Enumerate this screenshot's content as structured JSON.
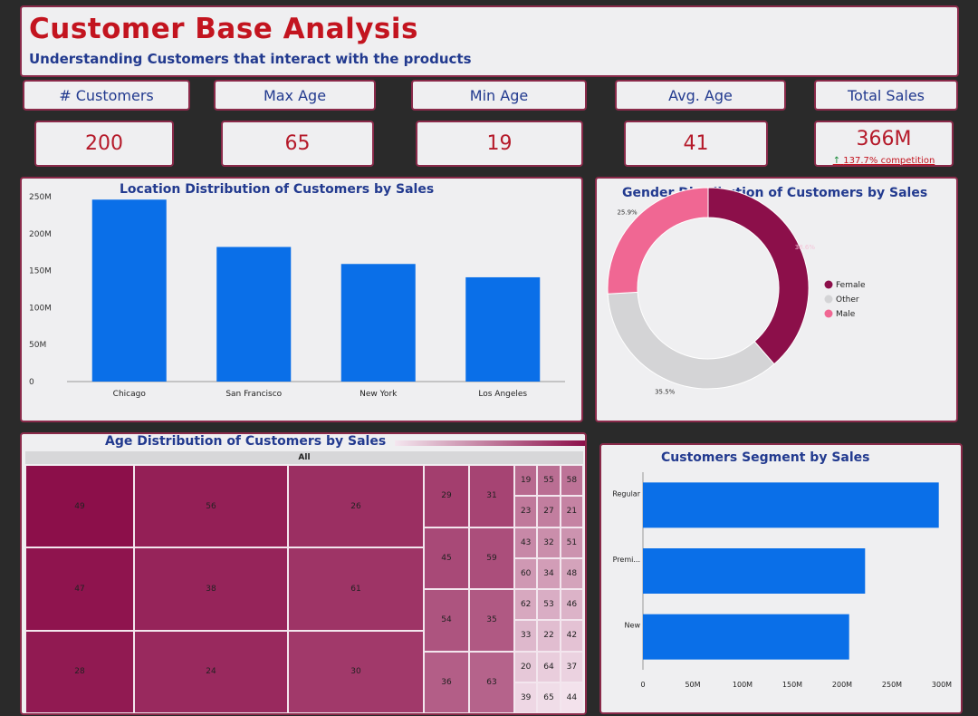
{
  "header": {
    "title": "Customer Base Analysis",
    "subtitle": "Understanding Customers that interact with the products"
  },
  "kpis": [
    {
      "label": "# Customers",
      "value": "200"
    },
    {
      "label": "Max Age",
      "value": "65"
    },
    {
      "label": "Min Age",
      "value": "19"
    },
    {
      "label": "Avg. Age",
      "value": "41"
    },
    {
      "label": "Total Sales",
      "value": "366M",
      "note": "137.7% competition"
    }
  ],
  "colors": {
    "accent": "#c3141f",
    "title_blue": "#223a8f",
    "bar_blue": "#0a6fe8",
    "female": "#8c0f4a",
    "other": "#d4d4d6",
    "male": "#f06793",
    "border": "#8a2a4a"
  },
  "chart_data": [
    {
      "type": "bar",
      "title": "Location Distribution of Customers by Sales",
      "categories": [
        "Chicago",
        "San Francisco",
        "New York",
        "Los Angeles"
      ],
      "values": [
        246,
        182,
        159,
        141
      ],
      "unit": "M",
      "ylim": [
        0,
        250
      ],
      "yticks": [
        "0",
        "50M",
        "100M",
        "150M",
        "200M",
        "250M"
      ],
      "grid": false
    },
    {
      "type": "pie",
      "title": "Gender Distribution of Customers by Sales",
      "donut": true,
      "slices": [
        {
          "name": "Female",
          "value": 38.6,
          "label": "38.6%"
        },
        {
          "name": "Other",
          "value": 35.5,
          "label": "35.5%"
        },
        {
          "name": "Male",
          "value": 25.9,
          "label": "25.9%"
        }
      ],
      "legend": "right"
    },
    {
      "type": "heatmap",
      "title": "Age Distribution of Customers by Sales",
      "header": "All",
      "cells": [
        49,
        47,
        28,
        56,
        38,
        24,
        26,
        61,
        30,
        29,
        31,
        45,
        59,
        54,
        35,
        36,
        63,
        19,
        55,
        58,
        23,
        27,
        21,
        43,
        32,
        51,
        60,
        34,
        48,
        62,
        53,
        46,
        33,
        22,
        42,
        20,
        64,
        37,
        39,
        65,
        44
      ]
    },
    {
      "type": "bar",
      "orientation": "horizontal",
      "title": "Customers Segment by Sales",
      "categories": [
        "Regular",
        "Premi...",
        "New"
      ],
      "values": [
        297,
        223,
        207
      ],
      "unit": "M",
      "xlim": [
        0,
        300
      ],
      "xticks": [
        "0",
        "50M",
        "100M",
        "150M",
        "200M",
        "250M",
        "300M"
      ],
      "grid": false
    }
  ]
}
